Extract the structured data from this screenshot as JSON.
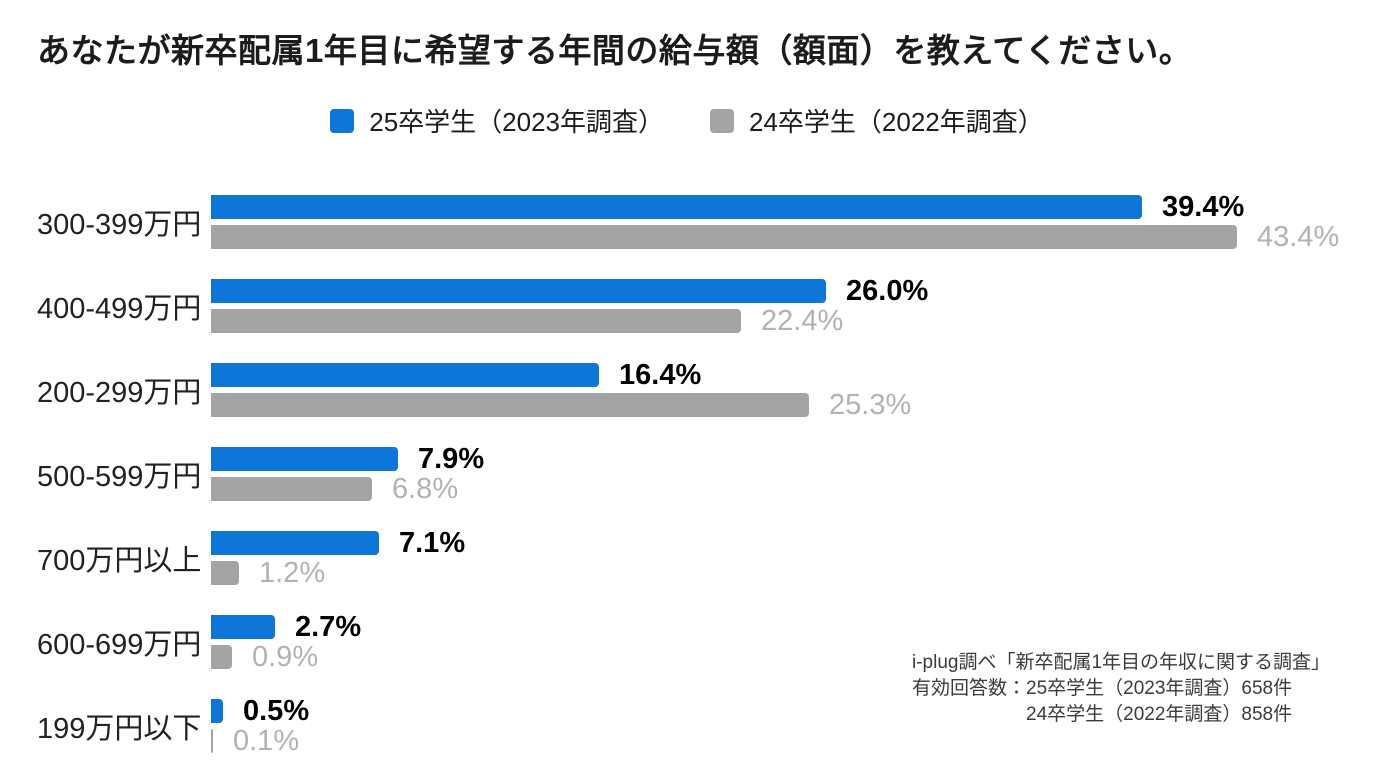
{
  "title": "あなたが新卒配属1年目に希望する年間の給与額（額面）を教えてください。",
  "legend": {
    "items": [
      {
        "label": "25卒学生（2023年調査）",
        "color": "#0d76d8"
      },
      {
        "label": "24卒学生（2022年調査）",
        "color": "#a4a4a4"
      }
    ]
  },
  "chart_data": {
    "type": "bar",
    "orientation": "horizontal",
    "title": "あなたが新卒配属1年目に希望する年間の給与額（額面）を教えてください。",
    "categories": [
      "300-399万円",
      "400-499万円",
      "200-299万円",
      "500-599万円",
      "700万円以上",
      "600-699万円",
      "199万円以下"
    ],
    "series": [
      {
        "name": "25卒学生（2023年調査）",
        "color": "#0d76d8",
        "values": [
          39.4,
          26.0,
          16.4,
          7.9,
          7.1,
          2.7,
          0.5
        ]
      },
      {
        "name": "24卒学生（2022年調査）",
        "color": "#a4a4a4",
        "values": [
          43.4,
          22.4,
          25.3,
          6.8,
          1.2,
          0.9,
          0.1
        ]
      }
    ],
    "value_suffix": "%",
    "value_decimals": 1,
    "xlim": [
      0,
      47.5
    ],
    "grid": false,
    "legend_position": "top-center",
    "value_labels_shown": true
  },
  "footer": {
    "line1": "i-plug調べ「新卒配属1年目の年収に関する調査」",
    "line2": "有効回答数：25卒学生（2023年調査）658件",
    "line3": "24卒学生（2022年調査）858件"
  }
}
